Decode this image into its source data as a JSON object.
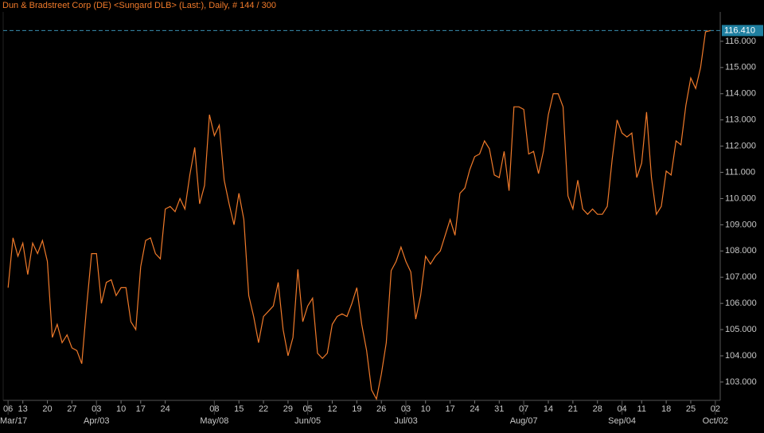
{
  "chart_data": {
    "type": "line",
    "title": "Dun & Bradstreet Corp (DE) <Sungard DLB> (Last:), Daily, # 144 / 300",
    "color": "#f07a2a",
    "values": [
      106.6,
      108.5,
      107.8,
      108.3,
      107.1,
      108.3,
      107.9,
      108.4,
      107.6,
      104.7,
      105.2,
      104.5,
      104.8,
      104.3,
      104.2,
      103.7,
      105.9,
      107.9,
      107.9,
      106.0,
      106.8,
      106.9,
      106.3,
      106.6,
      106.6,
      105.3,
      105.0,
      107.4,
      108.4,
      108.5,
      107.9,
      107.7,
      109.6,
      109.7,
      109.5,
      110.0,
      109.6,
      110.9,
      111.95,
      109.8,
      110.5,
      113.2,
      112.4,
      112.8,
      110.7,
      109.8,
      109.0,
      110.2,
      109.2,
      106.3,
      105.5,
      104.5,
      105.5,
      105.7,
      105.9,
      106.8,
      105.0,
      104.0,
      104.7,
      107.3,
      105.3,
      105.9,
      106.2,
      104.1,
      103.9,
      104.1,
      105.2,
      105.5,
      105.6,
      105.5,
      106.0,
      106.6,
      105.2,
      104.2,
      102.7,
      102.35,
      103.3,
      104.5,
      107.25,
      107.6,
      108.15,
      107.6,
      107.2,
      105.4,
      106.3,
      107.8,
      107.5,
      107.8,
      108.0,
      108.6,
      109.2,
      108.6,
      110.2,
      110.4,
      111.1,
      111.6,
      111.7,
      112.2,
      111.9,
      110.9,
      110.8,
      111.8,
      110.3,
      113.5,
      113.5,
      113.4,
      111.7,
      111.8,
      110.95,
      111.8,
      113.2,
      114.0,
      114.0,
      113.5,
      110.1,
      109.6,
      110.7,
      109.6,
      109.4,
      109.6,
      109.4,
      109.4,
      109.7,
      111.5,
      113.0,
      112.5,
      112.35,
      112.5,
      110.8,
      111.35,
      113.3,
      110.8,
      109.4,
      109.7,
      111.05,
      110.9,
      112.2,
      112.05,
      113.55,
      114.6,
      114.2,
      115.0,
      116.36,
      116.41
    ],
    "xlim": [
      -1,
      145
    ],
    "ylim": [
      102.3,
      117.12
    ],
    "yticks": [
      {
        "value": 103,
        "label": "103.000"
      },
      {
        "value": 104,
        "label": "104.000"
      },
      {
        "value": 105,
        "label": "105.000"
      },
      {
        "value": 106,
        "label": "106.000"
      },
      {
        "value": 107,
        "label": "107.000"
      },
      {
        "value": 108,
        "label": "108.000"
      },
      {
        "value": 109,
        "label": "109.000"
      },
      {
        "value": 110,
        "label": "110.000"
      },
      {
        "value": 111,
        "label": "111.000"
      },
      {
        "value": 112,
        "label": "112.000"
      },
      {
        "value": 113,
        "label": "113.000"
      },
      {
        "value": 114,
        "label": "114.000"
      },
      {
        "value": 115,
        "label": "115.000"
      },
      {
        "value": 116,
        "label": "116.000"
      }
    ],
    "xticks": [
      {
        "value": 0,
        "label": "06"
      },
      {
        "value": 3,
        "label": "13"
      },
      {
        "value": 8,
        "label": "20"
      },
      {
        "value": 13,
        "label": "27"
      },
      {
        "value": 18,
        "label": "03"
      },
      {
        "value": 23,
        "label": "10"
      },
      {
        "value": 27,
        "label": "17"
      },
      {
        "value": 32,
        "label": "24"
      },
      {
        "value": 42,
        "label": "08"
      },
      {
        "value": 47,
        "label": "15"
      },
      {
        "value": 52,
        "label": "22"
      },
      {
        "value": 57,
        "label": "29"
      },
      {
        "value": 61,
        "label": "05"
      },
      {
        "value": 66,
        "label": "12"
      },
      {
        "value": 71,
        "label": "19"
      },
      {
        "value": 76,
        "label": "26"
      },
      {
        "value": 81,
        "label": "03"
      },
      {
        "value": 85,
        "label": "10"
      },
      {
        "value": 90,
        "label": "17"
      },
      {
        "value": 95,
        "label": "24"
      },
      {
        "value": 100,
        "label": "31"
      },
      {
        "value": 105,
        "label": "07"
      },
      {
        "value": 110,
        "label": "14"
      },
      {
        "value": 115,
        "label": "21"
      },
      {
        "value": 120,
        "label": "28"
      },
      {
        "value": 125,
        "label": "04"
      },
      {
        "value": 129,
        "label": "11"
      },
      {
        "value": 134,
        "label": "18"
      },
      {
        "value": 139,
        "label": "25"
      },
      {
        "value": 144,
        "label": "02"
      }
    ],
    "month_labels": [
      {
        "value": 0,
        "label": "Mar/17"
      },
      {
        "value": 18,
        "label": "Apr/03"
      },
      {
        "value": 42,
        "label": "May/08"
      },
      {
        "value": 61,
        "label": "Jun/05"
      },
      {
        "value": 81,
        "label": "Jul/03"
      },
      {
        "value": 105,
        "label": "Aug/07"
      },
      {
        "value": 125,
        "label": "Sep/04"
      },
      {
        "value": 144,
        "label": "Oct/02"
      }
    ],
    "last_price": {
      "value": 116.41,
      "label": "116.410"
    }
  }
}
